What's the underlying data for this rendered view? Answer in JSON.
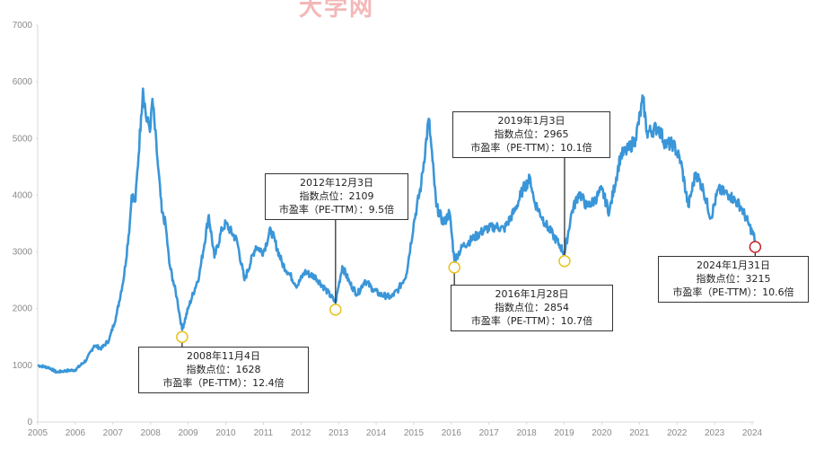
{
  "watermark": "大学网",
  "chart_data": {
    "type": "line",
    "title": "",
    "xlabel": "",
    "ylabel": "",
    "xlim": [
      2005,
      2024
    ],
    "ylim": [
      0,
      7000
    ],
    "x_ticks": [
      "2005",
      "2006",
      "2007",
      "2008",
      "2009",
      "2010",
      "2011",
      "2012",
      "2013",
      "2014",
      "2015",
      "2016",
      "2017",
      "2018",
      "2019",
      "2020",
      "2021",
      "2022",
      "2023",
      "2024"
    ],
    "y_ticks": [
      0,
      1000,
      2000,
      3000,
      4000,
      5000,
      6000,
      7000
    ],
    "grid": false,
    "legend": null,
    "line_color": "#3a96d8",
    "series": [
      {
        "name": "指数点位",
        "x": [
          2005.0,
          2005.3,
          2005.5,
          2005.7,
          2006.0,
          2006.3,
          2006.5,
          2006.7,
          2006.9,
          2007.1,
          2007.3,
          2007.45,
          2007.5,
          2007.6,
          2007.75,
          2007.8,
          2007.9,
          2008.0,
          2008.05,
          2008.2,
          2008.3,
          2008.4,
          2008.5,
          2008.6,
          2008.7,
          2008.84,
          2009.0,
          2009.3,
          2009.55,
          2009.7,
          2009.9,
          2010.0,
          2010.3,
          2010.5,
          2010.8,
          2011.0,
          2011.2,
          2011.5,
          2011.7,
          2011.9,
          2012.1,
          2012.4,
          2012.7,
          2012.92,
          2013.1,
          2013.3,
          2013.5,
          2013.7,
          2013.9,
          2014.1,
          2014.4,
          2014.6,
          2014.8,
          2015.0,
          2015.2,
          2015.4,
          2015.5,
          2015.6,
          2015.8,
          2015.95,
          2016.08,
          2016.3,
          2016.6,
          2016.9,
          2017.2,
          2017.4,
          2017.7,
          2017.9,
          2018.1,
          2018.2,
          2018.5,
          2018.7,
          2018.9,
          2019.01,
          2019.2,
          2019.4,
          2019.6,
          2019.8,
          2020.0,
          2020.2,
          2020.5,
          2020.7,
          2020.9,
          2021.1,
          2021.2,
          2021.5,
          2021.7,
          2021.9,
          2022.1,
          2022.3,
          2022.5,
          2022.7,
          2022.9,
          2023.1,
          2023.4,
          2023.7,
          2023.9,
          2024.08
        ],
        "values": [
          1000,
          960,
          880,
          900,
          920,
          1100,
          1350,
          1300,
          1450,
          1900,
          2600,
          3500,
          4000,
          3900,
          5400,
          5880,
          5300,
          5200,
          5700,
          4500,
          3700,
          3500,
          2800,
          2500,
          2200,
          1628,
          2000,
          2600,
          3650,
          2900,
          3400,
          3500,
          3200,
          2500,
          3100,
          3000,
          3400,
          2800,
          2600,
          2400,
          2650,
          2550,
          2300,
          2109,
          2750,
          2450,
          2250,
          2500,
          2350,
          2250,
          2200,
          2350,
          2600,
          3500,
          4200,
          5350,
          4600,
          3800,
          3500,
          3700,
          2854,
          3100,
          3250,
          3400,
          3450,
          3400,
          3750,
          4100,
          4300,
          3900,
          3500,
          3300,
          3100,
          2965,
          3700,
          4050,
          3800,
          3900,
          4100,
          3700,
          4700,
          4800,
          5000,
          5700,
          5100,
          5200,
          4900,
          4900,
          4600,
          3800,
          4400,
          4100,
          3600,
          4100,
          4000,
          3800,
          3500,
          3215
        ]
      }
    ],
    "annotations": [
      {
        "date": "2008年11月4日",
        "index_label": "指数点位：1628",
        "pe_label": "市盈率（PE-TTM）：12.4倍",
        "x": 2008.84,
        "y": 1628,
        "marker_color": "#e8c21c"
      },
      {
        "date": "2012年12月3日",
        "index_label": "指数点位：2109",
        "pe_label": "市盈率（PE-TTM）：9.5倍",
        "x": 2012.92,
        "y": 2109,
        "marker_color": "#e8c21c"
      },
      {
        "date": "2016年1月28日",
        "index_label": "指数点位：2854",
        "pe_label": "市盈率（PE-TTM）：10.7倍",
        "x": 2016.08,
        "y": 2854,
        "marker_color": "#e8c21c"
      },
      {
        "date": "2019年1月3日",
        "index_label": "指数点位：2965",
        "pe_label": "市盈率（PE-TTM）：10.1倍",
        "x": 2019.01,
        "y": 2965,
        "marker_color": "#e8c21c"
      },
      {
        "date": "2024年1月31日",
        "index_label": "指数点位：3215",
        "pe_label": "市盈率（PE-TTM）：10.6倍",
        "x": 2024.08,
        "y": 3215,
        "marker_color": "#c0282d"
      }
    ]
  }
}
